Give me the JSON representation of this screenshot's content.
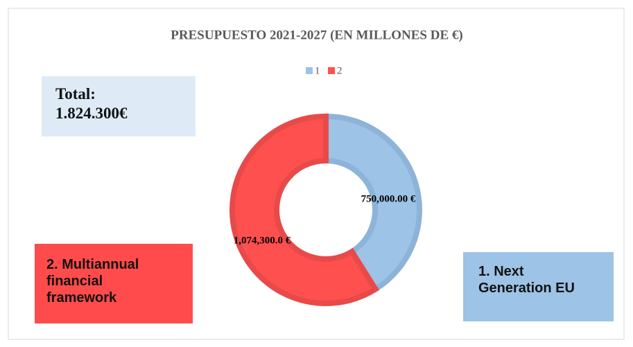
{
  "chart_data": {
    "type": "donut",
    "title": "PRESUPUESTO 2021-2027 (EN MILLONES DE €)",
    "categories": [
      "1",
      "2"
    ],
    "values": [
      750000,
      1074300
    ],
    "value_labels": [
      "750,000.00 €",
      "1,074,300.0 €"
    ],
    "colors": [
      "#9dc3e6",
      "#ff5050"
    ],
    "legend": "top",
    "annotations": [
      {
        "lines": [
          "Total:",
          "1.824.300€"
        ],
        "color": "#deebf7"
      },
      {
        "lines": [
          "2. Multiannual",
          "financial",
          "framework"
        ],
        "color": "#ff4b4b"
      },
      {
        "lines": [
          "1. Next",
          "Generation EU"
        ],
        "color": "#9dc3e6"
      }
    ]
  }
}
